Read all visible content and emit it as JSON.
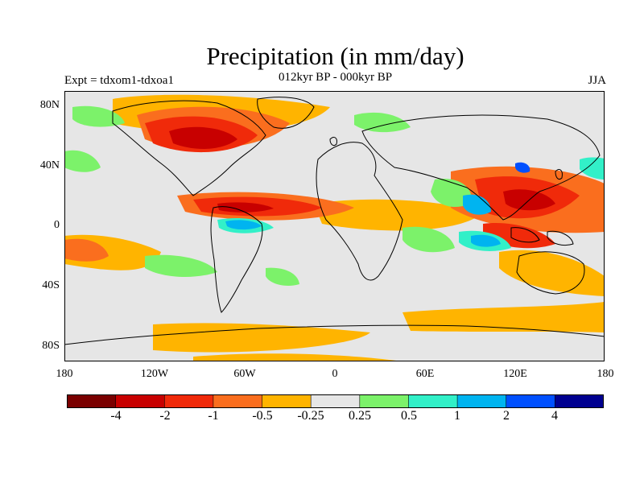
{
  "title": "Precipitation (in mm/day)",
  "subtitle": "012kyr BP - 000kyr BP",
  "left_label": "Expt = tdxom1-tdxoa1",
  "right_label": "JJA",
  "map": {
    "type": "filled-contour-map",
    "projection": "cylindrical-equidistant",
    "lon_range": [
      -180,
      180
    ],
    "lat_range": [
      -90,
      90
    ],
    "y_ticks": [
      "80N",
      "40N",
      "0",
      "40S",
      "80S"
    ],
    "x_ticks": [
      "180",
      "120W",
      "60W",
      "0",
      "60E",
      "120E",
      "180"
    ]
  },
  "colorbar": {
    "colors": [
      "#7a0000",
      "#c80000",
      "#f02a0a",
      "#fa6e1e",
      "#ffb400",
      "#e6e6e6",
      "#7cf26a",
      "#32f0c8",
      "#00b4f0",
      "#0050ff",
      "#000090"
    ],
    "labels": [
      "-4",
      "-2",
      "-1",
      "-0.5",
      "-0.25",
      "0.25",
      "0.5",
      "1",
      "2",
      "4"
    ]
  }
}
